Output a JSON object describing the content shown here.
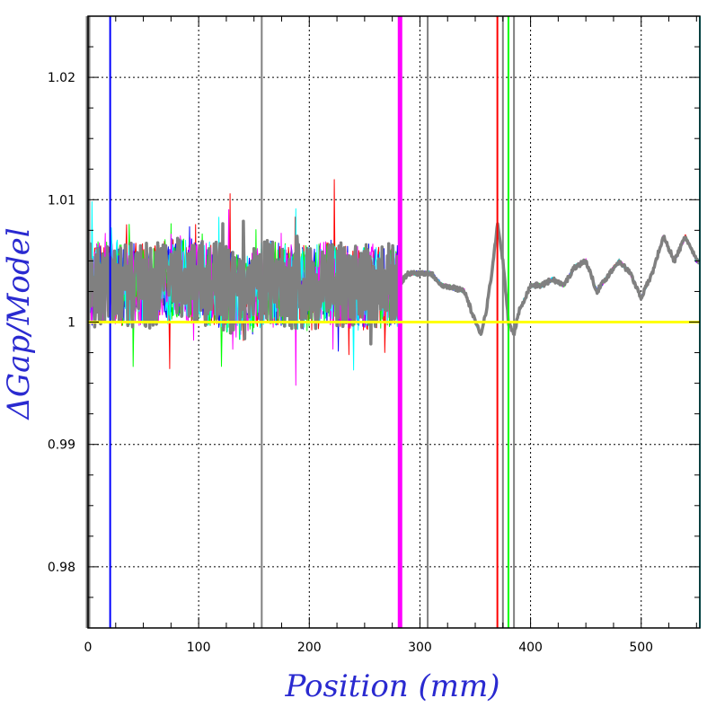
{
  "chart_data": {
    "type": "line",
    "title": "",
    "xlabel": "Position (mm)",
    "ylabel": "ΔGap/Model",
    "xlim": [
      0,
      553
    ],
    "ylim": [
      0.975,
      1.025
    ],
    "x_ticks": [
      0,
      100,
      200,
      300,
      400,
      500
    ],
    "x_tick_labels": [
      "0",
      "100",
      "200",
      "300",
      "400",
      "500"
    ],
    "y_ticks": [
      0.98,
      0.99,
      1.0,
      1.01,
      1.02
    ],
    "y_tick_labels": [
      "0.98",
      "0.99",
      "1",
      "1.01",
      "1.02"
    ],
    "grid": true,
    "reference_line": {
      "y": 1.0,
      "color": "#ffff00"
    },
    "series_colors": [
      "#ff0000",
      "#0000ff",
      "#00ff00",
      "#ff00ff",
      "#00ffff",
      "#808080"
    ],
    "profile": {
      "x": [
        0,
        20,
        40,
        60,
        80,
        100,
        120,
        140,
        160,
        180,
        200,
        220,
        240,
        260,
        280,
        290,
        300,
        310,
        320,
        330,
        340,
        350,
        355,
        360,
        365,
        370,
        375,
        380,
        385,
        390,
        400,
        410,
        420,
        430,
        440,
        450,
        460,
        470,
        480,
        490,
        500,
        510,
        520,
        530,
        540,
        550
      ],
      "y": [
        1.003,
        1.004,
        1.003,
        1.003,
        1.005,
        1.004,
        1.003,
        0.999,
        1.004,
        1.003,
        1.002,
        1.004,
        1.002,
        1.003,
        1.003,
        1.004,
        1.004,
        1.004,
        1.003,
        1.0028,
        1.0026,
        1.0,
        0.999,
        1.001,
        1.004,
        1.008,
        1.005,
        1.0,
        0.999,
        1.001,
        1.003,
        1.003,
        1.0035,
        1.003,
        1.0045,
        1.005,
        1.0025,
        1.0038,
        1.005,
        1.004,
        1.002,
        1.004,
        1.007,
        1.005,
        1.007,
        1.005
      ]
    },
    "noise_region": {
      "x_start": 0,
      "x_end": 282,
      "center": 1.003,
      "amplitude": 0.0035
    },
    "spike_positions": [
      0,
      20,
      157,
      282,
      307,
      370,
      375,
      380,
      385,
      553
    ]
  }
}
